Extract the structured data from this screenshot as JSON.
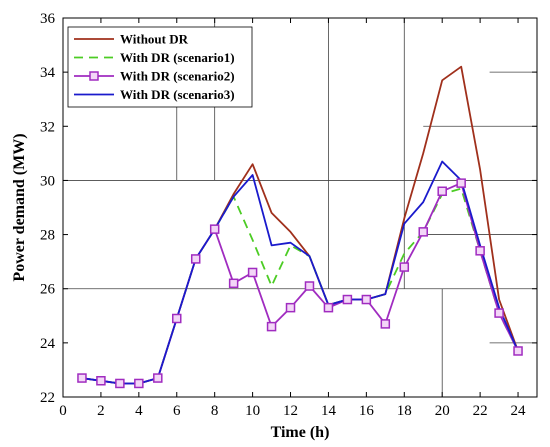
{
  "chart_data": {
    "type": "line",
    "xlabel": "Time (h)",
    "ylabel": "Power demand (MW)",
    "xlim": [
      0,
      25
    ],
    "ylim": [
      22,
      36
    ],
    "x_ticks": [
      0,
      2,
      4,
      6,
      8,
      10,
      12,
      14,
      16,
      18,
      20,
      22,
      24
    ],
    "y_ticks": [
      22,
      24,
      26,
      28,
      30,
      32,
      34,
      36
    ],
    "x_tick_labels": [
      "0",
      "2",
      "4",
      "6",
      "8",
      "10",
      "12",
      "14",
      "16",
      "18",
      "20",
      "22",
      "24"
    ],
    "y_tick_labels": [
      "22",
      "24",
      "26",
      "28",
      "30",
      "32",
      "34",
      "36"
    ],
    "legend_position": "top-left",
    "grid": "partial",
    "x": [
      1,
      2,
      3,
      4,
      5,
      6,
      7,
      8,
      9,
      10,
      11,
      12,
      13,
      14,
      15,
      16,
      17,
      18,
      19,
      20,
      21,
      22,
      23,
      24
    ],
    "series": [
      {
        "name": "Without DR",
        "color": "#a0301c",
        "style": "solid",
        "marker": "none",
        "values": [
          22.7,
          22.6,
          22.5,
          22.5,
          22.7,
          24.9,
          27.1,
          28.2,
          29.5,
          30.6,
          28.8,
          28.1,
          27.2,
          25.4,
          25.6,
          25.6,
          25.8,
          28.6,
          31.0,
          33.7,
          34.2,
          30.4,
          25.6,
          23.7
        ]
      },
      {
        "name": "With DR (scenario1)",
        "color": "#4ccc24",
        "style": "dashed",
        "marker": "none",
        "values": [
          22.7,
          22.6,
          22.5,
          22.5,
          22.7,
          24.9,
          27.1,
          28.2,
          29.4,
          27.8,
          26.1,
          27.6,
          27.2,
          25.4,
          25.6,
          25.6,
          25.8,
          27.3,
          28.1,
          29.5,
          29.7,
          27.4,
          25.1,
          23.7
        ]
      },
      {
        "name": "With DR (scenario2)",
        "color": "#a02cc0",
        "style": "solid",
        "marker": "square",
        "values": [
          22.7,
          22.6,
          22.5,
          22.5,
          22.7,
          24.9,
          27.1,
          28.2,
          26.2,
          26.6,
          24.6,
          25.3,
          26.1,
          25.3,
          25.6,
          25.6,
          24.7,
          26.8,
          28.1,
          29.6,
          29.9,
          27.4,
          25.1,
          23.7
        ]
      },
      {
        "name": "With DR (scenario3)",
        "color": "#1a1acc",
        "style": "solid",
        "marker": "none",
        "values": [
          22.7,
          22.6,
          22.5,
          22.5,
          22.7,
          24.9,
          27.1,
          28.2,
          29.4,
          30.2,
          27.6,
          27.7,
          27.2,
          25.4,
          25.6,
          25.6,
          25.8,
          28.4,
          29.2,
          30.7,
          30.0,
          27.6,
          25.3,
          23.7
        ]
      }
    ]
  }
}
